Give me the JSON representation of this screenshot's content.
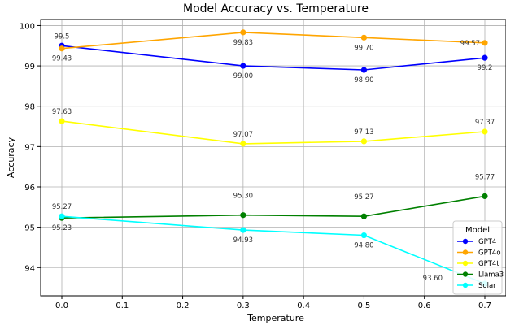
{
  "chart_data": {
    "type": "line",
    "title": "Model Accuracy vs. Temperature",
    "xlabel": "Temperature",
    "ylabel": "Accuracy",
    "x": [
      0.0,
      0.3,
      0.5,
      0.7
    ],
    "xlim": [
      -0.035,
      0.735
    ],
    "ylim": [
      93.3,
      100.15
    ],
    "xticks": [
      0.0,
      0.1,
      0.2,
      0.3,
      0.4,
      0.5,
      0.6,
      0.7
    ],
    "xtick_labels": [
      "0.0",
      "0.1",
      "0.2",
      "0.3",
      "0.4",
      "0.5",
      "0.6",
      "0.7"
    ],
    "yticks": [
      94,
      95,
      96,
      97,
      98,
      99,
      100
    ],
    "ytick_labels": [
      "94",
      "95",
      "96",
      "97",
      "98",
      "99",
      "100"
    ],
    "grid": true,
    "legend": {
      "title": "Model",
      "placement": "bottom-right"
    },
    "series": [
      {
        "name": "GPT4",
        "color": "#0000ff",
        "values": [
          99.5,
          99.0,
          98.9,
          99.2
        ],
        "labels": [
          "99.5",
          "99.00",
          "98.90",
          "99.2"
        ],
        "label_pos": [
          "above",
          "below",
          "below",
          "below"
        ]
      },
      {
        "name": "GPT4o",
        "color": "#ffa500",
        "values": [
          99.43,
          99.83,
          99.7,
          99.57
        ],
        "labels": [
          "99.43",
          "99.83",
          "99.70",
          "99.57"
        ],
        "label_pos": [
          "below",
          "below",
          "below",
          "inline"
        ]
      },
      {
        "name": "GPT4t",
        "color": "#ffff00",
        "values": [
          97.63,
          97.07,
          97.13,
          97.37
        ],
        "labels": [
          "97.63",
          "97.07",
          "97.13",
          "97.37"
        ],
        "label_pos": [
          "above",
          "above",
          "above",
          "above"
        ]
      },
      {
        "name": "Llama3",
        "color": "#008000",
        "values": [
          95.23,
          95.3,
          95.27,
          95.77
        ],
        "labels": [
          "95.23",
          "95.30",
          "95.27",
          "95.77"
        ],
        "label_pos": [
          "below",
          "above-far",
          "above-far",
          "above-far"
        ]
      },
      {
        "name": "Solar",
        "color": "#00ffff",
        "values": [
          95.27,
          94.93,
          94.8,
          93.6
        ],
        "labels": [
          "95.27",
          "94.93",
          "94.80",
          "93.60"
        ],
        "label_pos": [
          "above",
          "below",
          "below",
          "left"
        ]
      }
    ]
  }
}
